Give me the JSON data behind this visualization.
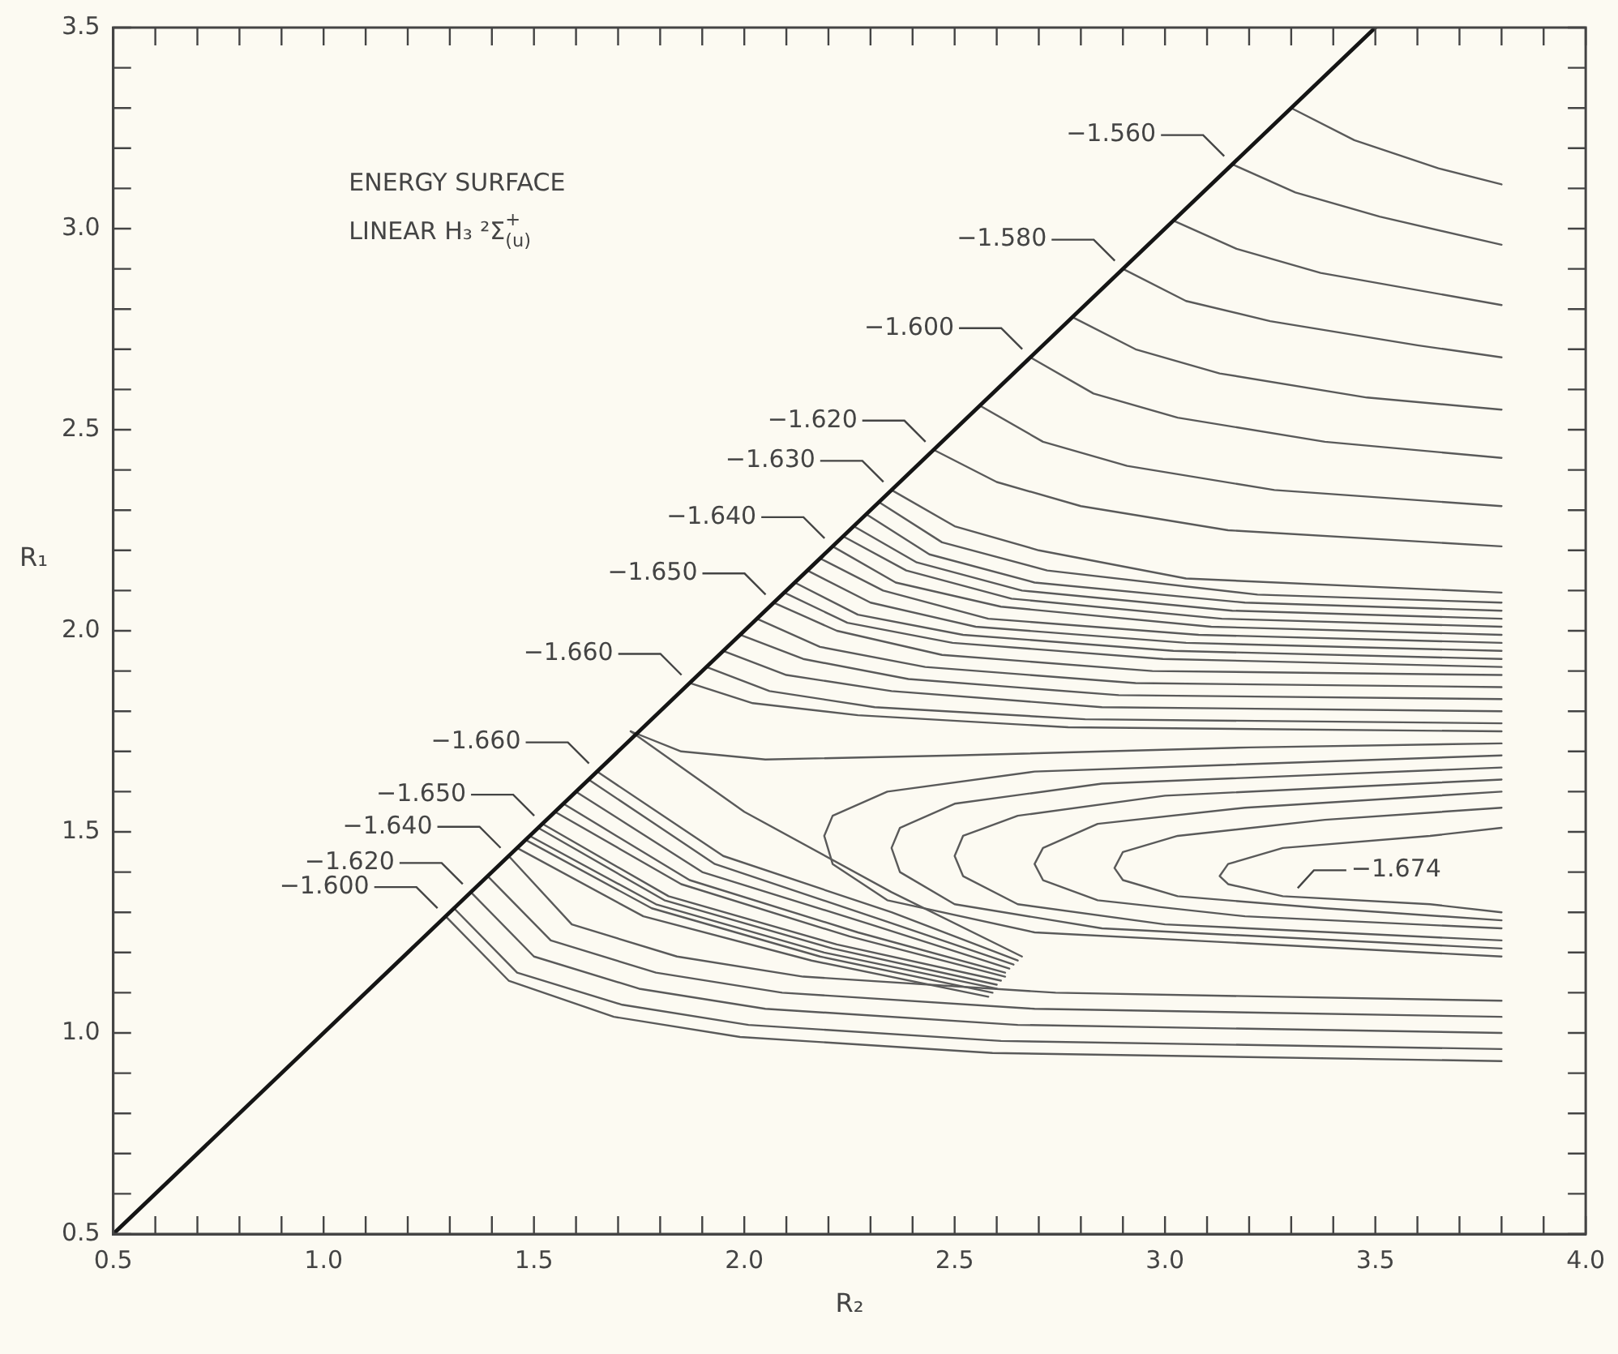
{
  "chart_data": {
    "type": "line",
    "title": "ENERGY SURFACE",
    "subtitle": "LINEAR H₃ ²Σ$^{+}$$_{(u)}$",
    "xlabel": "R₂",
    "ylabel": "R₁",
    "color": "#5a5a5a",
    "line_style": "solid",
    "xlim": [
      0.5,
      4.0
    ],
    "ylim": [
      0.5,
      3.5
    ],
    "xticks": [
      {
        "value": 0.5,
        "label": "0.5"
      },
      {
        "value": 0.6,
        "label": null
      },
      {
        "value": 0.7,
        "label": null
      },
      {
        "value": 0.8,
        "label": null
      },
      {
        "value": 0.9,
        "label": null
      },
      {
        "value": 1.0,
        "label": "1.0"
      },
      {
        "value": 1.1,
        "label": null
      },
      {
        "value": 1.2,
        "label": null
      },
      {
        "value": 1.3,
        "label": null
      },
      {
        "value": 1.4,
        "label": null
      },
      {
        "value": 1.5,
        "label": "1.5"
      },
      {
        "value": 1.6,
        "label": null
      },
      {
        "value": 1.7,
        "label": null
      },
      {
        "value": 1.8,
        "label": null
      },
      {
        "value": 1.9,
        "label": null
      },
      {
        "value": 2.0,
        "label": "2.0"
      },
      {
        "value": 2.1,
        "label": null
      },
      {
        "value": 2.2,
        "label": null
      },
      {
        "value": 2.3,
        "label": null
      },
      {
        "value": 2.4,
        "label": null
      },
      {
        "value": 2.5,
        "label": "2.5"
      },
      {
        "value": 2.6,
        "label": null
      },
      {
        "value": 2.7,
        "label": null
      },
      {
        "value": 2.8,
        "label": null
      },
      {
        "value": 2.9,
        "label": null
      },
      {
        "value": 3.0,
        "label": "3.0"
      },
      {
        "value": 3.1,
        "label": null
      },
      {
        "value": 3.2,
        "label": null
      },
      {
        "value": 3.3,
        "label": null
      },
      {
        "value": 3.4,
        "label": null
      },
      {
        "value": 3.5,
        "label": "3.5"
      },
      {
        "value": 3.6,
        "label": null
      },
      {
        "value": 3.7,
        "label": null
      },
      {
        "value": 3.8,
        "label": null
      },
      {
        "value": 3.9,
        "label": null
      },
      {
        "value": 4.0,
        "label": "4.0"
      }
    ],
    "yticks": [
      {
        "value": 0.5,
        "label": "0.5"
      },
      {
        "value": 0.6,
        "label": null
      },
      {
        "value": 0.7,
        "label": null
      },
      {
        "value": 0.8,
        "label": null
      },
      {
        "value": 0.9,
        "label": null
      },
      {
        "value": 1.0,
        "label": "1.0"
      },
      {
        "value": 1.1,
        "label": null
      },
      {
        "value": 1.2,
        "label": null
      },
      {
        "value": 1.3,
        "label": null
      },
      {
        "value": 1.4,
        "label": null
      },
      {
        "value": 1.5,
        "label": "1.5"
      },
      {
        "value": 1.6,
        "label": null
      },
      {
        "value": 1.7,
        "label": null
      },
      {
        "value": 1.8,
        "label": null
      },
      {
        "value": 1.9,
        "label": null
      },
      {
        "value": 2.0,
        "label": "2.0"
      },
      {
        "value": 2.1,
        "label": null
      },
      {
        "value": 2.2,
        "label": null
      },
      {
        "value": 2.3,
        "label": null
      },
      {
        "value": 2.4,
        "label": null
      },
      {
        "value": 2.5,
        "label": "2.5"
      },
      {
        "value": 2.6,
        "label": null
      },
      {
        "value": 2.7,
        "label": null
      },
      {
        "value": 2.8,
        "label": null
      },
      {
        "value": 2.9,
        "label": null
      },
      {
        "value": 3.0,
        "label": "3.0"
      },
      {
        "value": 3.1,
        "label": null
      },
      {
        "value": 3.2,
        "label": null
      },
      {
        "value": 3.3,
        "label": null
      },
      {
        "value": 3.4,
        "label": null
      },
      {
        "value": 3.5,
        "label": "3.5"
      }
    ],
    "annotations": [
      {
        "text": "−1.560",
        "x": 3.16,
        "y": 3.16
      },
      {
        "text": "−1.580",
        "x": 2.9,
        "y": 2.9
      },
      {
        "text": "−1.600",
        "x": 2.68,
        "y": 2.68
      },
      {
        "text": "−1.620",
        "x": 2.45,
        "y": 2.45
      },
      {
        "text": "−1.630",
        "x": 2.35,
        "y": 2.35
      },
      {
        "text": "−1.640",
        "x": 2.21,
        "y": 2.21
      },
      {
        "text": "−1.650",
        "x": 2.07,
        "y": 2.07
      },
      {
        "text": "−1.660",
        "x": 1.87,
        "y": 1.87
      },
      {
        "text": "−1.660",
        "x": 1.65,
        "y": 1.65
      },
      {
        "text": "−1.650",
        "x": 1.52,
        "y": 1.52
      },
      {
        "text": "−1.640",
        "x": 1.44,
        "y": 1.44
      },
      {
        "text": "−1.620",
        "x": 1.35,
        "y": 1.35
      },
      {
        "text": "−1.600",
        "x": 1.29,
        "y": 1.29
      },
      {
        "text": "−1.674",
        "x": 3.3,
        "y": 1.34
      }
    ],
    "series": [
      {
        "x": [
          0.5,
          3.5
        ],
        "values": [
          0.5,
          3.5
        ],
        "color": "#151515"
      },
      {
        "x": [
          3.3,
          3.45,
          3.65,
          3.8
        ],
        "values": [
          3.3,
          3.22,
          3.15,
          3.11
        ]
      },
      {
        "x": [
          3.16,
          3.31,
          3.51,
          3.8
        ],
        "values": [
          3.16,
          3.09,
          3.03,
          2.96
        ]
      },
      {
        "x": [
          3.02,
          3.17,
          3.37,
          3.8
        ],
        "values": [
          3.02,
          2.95,
          2.89,
          2.81
        ]
      },
      {
        "x": [
          2.9,
          3.05,
          3.25,
          3.6,
          3.8
        ],
        "values": [
          2.9,
          2.82,
          2.77,
          2.71,
          2.68
        ]
      },
      {
        "x": [
          2.78,
          2.93,
          3.13,
          3.48,
          3.8
        ],
        "values": [
          2.78,
          2.7,
          2.64,
          2.58,
          2.55
        ]
      },
      {
        "x": [
          2.68,
          2.83,
          3.03,
          3.38,
          3.8
        ],
        "values": [
          2.68,
          2.59,
          2.53,
          2.47,
          2.43
        ]
      },
      {
        "x": [
          2.56,
          2.71,
          2.91,
          3.26,
          3.8
        ],
        "values": [
          2.56,
          2.47,
          2.41,
          2.35,
          2.31
        ]
      },
      {
        "x": [
          2.45,
          2.6,
          2.8,
          3.15,
          3.8
        ],
        "values": [
          2.45,
          2.37,
          2.31,
          2.25,
          2.21
        ]
      },
      {
        "x": [
          2.35,
          2.5,
          2.7,
          3.05,
          3.8
        ],
        "values": [
          2.35,
          2.26,
          2.2,
          2.13,
          2.095
        ]
      },
      {
        "x": [
          2.32,
          2.47,
          2.72,
          3.22,
          3.8
        ],
        "values": [
          2.32,
          2.22,
          2.15,
          2.09,
          2.07
        ]
      },
      {
        "x": [
          2.29,
          2.44,
          2.69,
          3.19,
          3.8
        ],
        "values": [
          2.29,
          2.19,
          2.12,
          2.07,
          2.05
        ]
      },
      {
        "x": [
          2.26,
          2.41,
          2.66,
          3.16,
          3.8
        ],
        "values": [
          2.26,
          2.17,
          2.1,
          2.05,
          2.03
        ]
      },
      {
        "x": [
          2.235,
          2.385,
          2.635,
          3.135,
          3.8
        ],
        "values": [
          2.235,
          2.15,
          2.08,
          2.03,
          2.01
        ]
      },
      {
        "x": [
          2.21,
          2.36,
          2.61,
          3.11,
          3.8
        ],
        "values": [
          2.21,
          2.12,
          2.06,
          2.01,
          1.99
        ]
      },
      {
        "x": [
          2.18,
          2.33,
          2.58,
          3.08,
          3.8
        ],
        "values": [
          2.18,
          2.1,
          2.03,
          1.99,
          1.97
        ]
      },
      {
        "x": [
          2.15,
          2.3,
          2.55,
          3.05,
          3.8
        ],
        "values": [
          2.15,
          2.07,
          2.01,
          1.97,
          1.95
        ]
      },
      {
        "x": [
          2.12,
          2.27,
          2.52,
          3.02,
          3.8
        ],
        "values": [
          2.12,
          2.04,
          1.99,
          1.95,
          1.93
        ]
      },
      {
        "x": [
          2.095,
          2.245,
          2.495,
          2.995,
          3.8
        ],
        "values": [
          2.095,
          2.02,
          1.97,
          1.93,
          1.91
        ]
      },
      {
        "x": [
          2.07,
          2.22,
          2.47,
          2.97,
          3.8
        ],
        "values": [
          2.07,
          2.0,
          1.94,
          1.9,
          1.89
        ]
      },
      {
        "x": [
          2.03,
          2.18,
          2.43,
          2.93,
          3.8
        ],
        "values": [
          2.03,
          1.96,
          1.91,
          1.87,
          1.86
        ]
      },
      {
        "x": [
          1.99,
          2.14,
          2.39,
          2.89,
          3.8
        ],
        "values": [
          1.99,
          1.93,
          1.88,
          1.84,
          1.83
        ]
      },
      {
        "x": [
          1.95,
          2.1,
          2.35,
          2.85,
          3.8
        ],
        "values": [
          1.95,
          1.89,
          1.85,
          1.81,
          1.8
        ]
      },
      {
        "x": [
          1.91,
          2.06,
          2.31,
          2.81,
          3.8
        ],
        "values": [
          1.91,
          1.85,
          1.81,
          1.78,
          1.77
        ]
      },
      {
        "x": [
          1.87,
          2.02,
          2.27,
          2.77,
          3.8
        ],
        "values": [
          1.87,
          1.82,
          1.79,
          1.76,
          1.75
        ]
      },
      {
        "x": [
          1.73,
          1.85,
          2.05,
          2.5,
          3.2,
          3.8
        ],
        "values": [
          1.75,
          1.7,
          1.68,
          1.69,
          1.71,
          1.72
        ]
      },
      {
        "x": [
          1.73,
          2.0,
          2.35,
          2.66
        ],
        "values": [
          1.75,
          1.55,
          1.35,
          1.19
        ]
      },
      {
        "x": [
          3.8,
          2.69,
          2.34,
          2.21,
          2.19,
          2.21,
          2.34,
          2.69,
          3.8
        ],
        "values": [
          1.69,
          1.65,
          1.6,
          1.54,
          1.49,
          1.42,
          1.33,
          1.25,
          1.19
        ]
      },
      {
        "x": [
          3.8,
          2.85,
          2.5,
          2.37,
          2.35,
          2.37,
          2.5,
          2.85,
          3.8
        ],
        "values": [
          1.66,
          1.62,
          1.57,
          1.51,
          1.46,
          1.4,
          1.32,
          1.26,
          1.21
        ]
      },
      {
        "x": [
          3.8,
          3.0,
          2.65,
          2.52,
          2.5,
          2.52,
          2.65,
          3.0,
          3.8
        ],
        "values": [
          1.63,
          1.59,
          1.54,
          1.49,
          1.44,
          1.39,
          1.32,
          1.27,
          1.23
        ]
      },
      {
        "x": [
          3.8,
          3.19,
          2.84,
          2.71,
          2.69,
          2.71,
          2.84,
          3.19,
          3.8
        ],
        "values": [
          1.6,
          1.56,
          1.52,
          1.46,
          1.42,
          1.38,
          1.33,
          1.29,
          1.26
        ]
      },
      {
        "x": [
          3.8,
          3.38,
          3.03,
          2.9,
          2.88,
          2.9,
          3.03,
          3.38,
          3.8
        ],
        "values": [
          1.56,
          1.53,
          1.49,
          1.45,
          1.41,
          1.38,
          1.34,
          1.31,
          1.28
        ]
      },
      {
        "x": [
          3.8,
          3.63,
          3.28,
          3.15,
          3.13,
          3.15,
          3.28,
          3.63,
          3.8
        ],
        "values": [
          1.51,
          1.49,
          1.46,
          1.42,
          1.39,
          1.37,
          1.34,
          1.32,
          1.3
        ]
      },
      {
        "x": [
          1.29,
          1.44,
          1.69,
          1.99,
          2.59,
          3.8
        ],
        "values": [
          1.29,
          1.13,
          1.04,
          0.99,
          0.95,
          0.93
        ]
      },
      {
        "x": [
          1.31,
          1.46,
          1.71,
          2.01,
          2.61,
          3.8
        ],
        "values": [
          1.31,
          1.15,
          1.07,
          1.02,
          0.98,
          0.96
        ]
      },
      {
        "x": [
          1.35,
          1.5,
          1.75,
          2.05,
          2.65,
          3.8
        ],
        "values": [
          1.35,
          1.19,
          1.11,
          1.06,
          1.02,
          1.0
        ]
      },
      {
        "x": [
          1.39,
          1.54,
          1.79,
          2.09,
          2.69,
          3.8
        ],
        "values": [
          1.39,
          1.23,
          1.15,
          1.1,
          1.06,
          1.04
        ]
      },
      {
        "x": [
          1.44,
          1.59,
          1.84,
          2.14,
          2.74,
          3.8
        ],
        "values": [
          1.44,
          1.27,
          1.19,
          1.14,
          1.1,
          1.08
        ]
      },
      {
        "x": [
          1.46,
          1.76,
          2.16,
          2.58
        ],
        "values": [
          1.46,
          1.29,
          1.18,
          1.09
        ]
      },
      {
        "x": [
          1.48,
          1.78,
          2.18,
          2.59
        ],
        "values": [
          1.48,
          1.31,
          1.19,
          1.1
        ]
      },
      {
        "x": [
          1.49,
          1.79,
          2.19,
          2.6
        ],
        "values": [
          1.49,
          1.32,
          1.2,
          1.11
        ]
      },
      {
        "x": [
          1.51,
          1.81,
          2.21,
          2.6
        ],
        "values": [
          1.51,
          1.33,
          1.21,
          1.12
        ]
      },
      {
        "x": [
          1.52,
          1.82,
          2.22,
          2.61
        ],
        "values": [
          1.52,
          1.34,
          1.22,
          1.13
        ]
      },
      {
        "x": [
          1.55,
          1.85,
          2.25,
          2.62
        ],
        "values": [
          1.55,
          1.37,
          1.24,
          1.14
        ]
      },
      {
        "x": [
          1.57,
          1.87,
          2.27,
          2.62
        ],
        "values": [
          1.57,
          1.38,
          1.25,
          1.15
        ]
      },
      {
        "x": [
          1.6,
          1.9,
          2.3,
          2.63
        ],
        "values": [
          1.6,
          1.4,
          1.27,
          1.16
        ]
      },
      {
        "x": [
          1.63,
          1.93,
          2.33,
          2.64
        ],
        "values": [
          1.63,
          1.42,
          1.28,
          1.17
        ]
      },
      {
        "x": [
          1.65,
          1.95,
          2.35,
          2.65
        ],
        "values": [
          1.65,
          1.44,
          1.3,
          1.18
        ]
      }
    ]
  }
}
